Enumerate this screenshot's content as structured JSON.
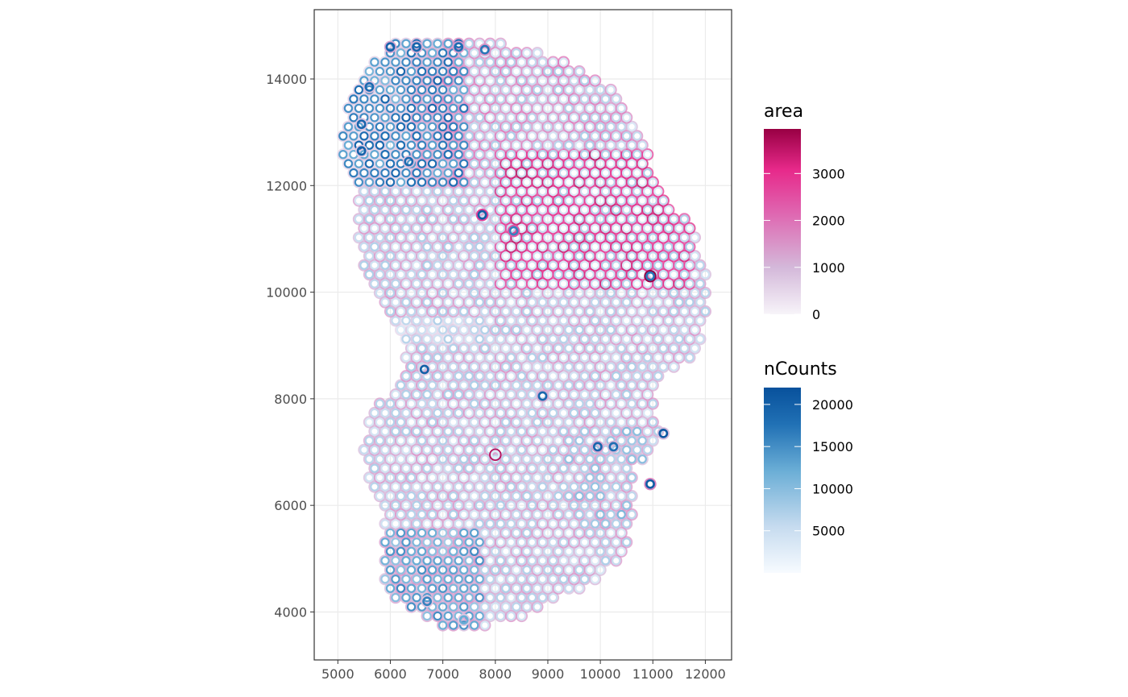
{
  "chart_data": {
    "type": "scatter",
    "title": "",
    "xlabel": "",
    "ylabel": "",
    "xlim": [
      4550,
      12500
    ],
    "ylim": [
      3100,
      15300
    ],
    "x_ticks": [
      5000,
      6000,
      7000,
      8000,
      9000,
      10000,
      11000,
      12000
    ],
    "x_tick_labels": [
      "5000",
      "6000",
      "7000",
      "8000",
      "9000",
      "10000",
      "11000",
      "12000"
    ],
    "y_ticks": [
      4000,
      6000,
      8000,
      10000,
      12000,
      14000
    ],
    "y_tick_labels": [
      "4000",
      "6000",
      "8000",
      "10000",
      "12000",
      "14000"
    ],
    "grid": true,
    "marker": "hollow-circle",
    "fill_aesthetic": {
      "name": "area",
      "range": [
        0,
        3950
      ],
      "breaks": [
        0,
        1000,
        2000,
        3000
      ],
      "break_labels": [
        "0",
        "1000",
        "2000",
        "3000"
      ],
      "colors": [
        "#f7f4f9",
        "#d4b9da",
        "#df65b0",
        "#e7298a",
        "#980043"
      ]
    },
    "color_aesthetic": {
      "name": "nCounts",
      "range": [
        0,
        22000
      ],
      "breaks": [
        5000,
        10000,
        15000,
        20000
      ],
      "break_labels": [
        "5000",
        "10000",
        "15000",
        "20000"
      ],
      "colors": [
        "#f7fbff",
        "#c6dbef",
        "#6baed6",
        "#2171b5",
        "#08519c"
      ]
    },
    "legend_position": "right",
    "highlighted_points": [
      {
        "x": 6000,
        "y": 14600,
        "nCounts": 19000,
        "area": 1200
      },
      {
        "x": 6500,
        "y": 14600,
        "nCounts": 18500,
        "area": 1100
      },
      {
        "x": 7300,
        "y": 14600,
        "nCounts": 17000,
        "area": 1300
      },
      {
        "x": 7800,
        "y": 14550,
        "nCounts": 16000,
        "area": 1400
      },
      {
        "x": 5600,
        "y": 13850,
        "nCounts": 17500,
        "area": 900
      },
      {
        "x": 5450,
        "y": 13150,
        "nCounts": 18500,
        "area": 800
      },
      {
        "x": 5450,
        "y": 12650,
        "nCounts": 19000,
        "area": 700
      },
      {
        "x": 6350,
        "y": 12450,
        "nCounts": 17500,
        "area": 900
      },
      {
        "x": 7750,
        "y": 11450,
        "nCounts": 20000,
        "area": 2600
      },
      {
        "x": 8350,
        "y": 11150,
        "nCounts": 15000,
        "area": 2200
      },
      {
        "x": 10950,
        "y": 10300,
        "nCounts": 16000,
        "area": 3950
      },
      {
        "x": 6650,
        "y": 8550,
        "nCounts": 19500,
        "area": 600
      },
      {
        "x": 8900,
        "y": 8050,
        "nCounts": 18000,
        "area": 1100
      },
      {
        "x": 9950,
        "y": 7100,
        "nCounts": 18500,
        "area": 1200
      },
      {
        "x": 10250,
        "y": 7100,
        "nCounts": 17000,
        "area": 1000
      },
      {
        "x": 11200,
        "y": 7350,
        "nCounts": 21000,
        "area": 900
      },
      {
        "x": 10950,
        "y": 6400,
        "nCounts": 20000,
        "area": 1600
      },
      {
        "x": 8000,
        "y": 6950,
        "nCounts": 3000,
        "area": 3600
      },
      {
        "x": 6700,
        "y": 4200,
        "nCounts": 15000,
        "area": 800
      },
      {
        "x": 7400,
        "y": 3850,
        "nCounts": 11000,
        "area": 700
      }
    ]
  }
}
